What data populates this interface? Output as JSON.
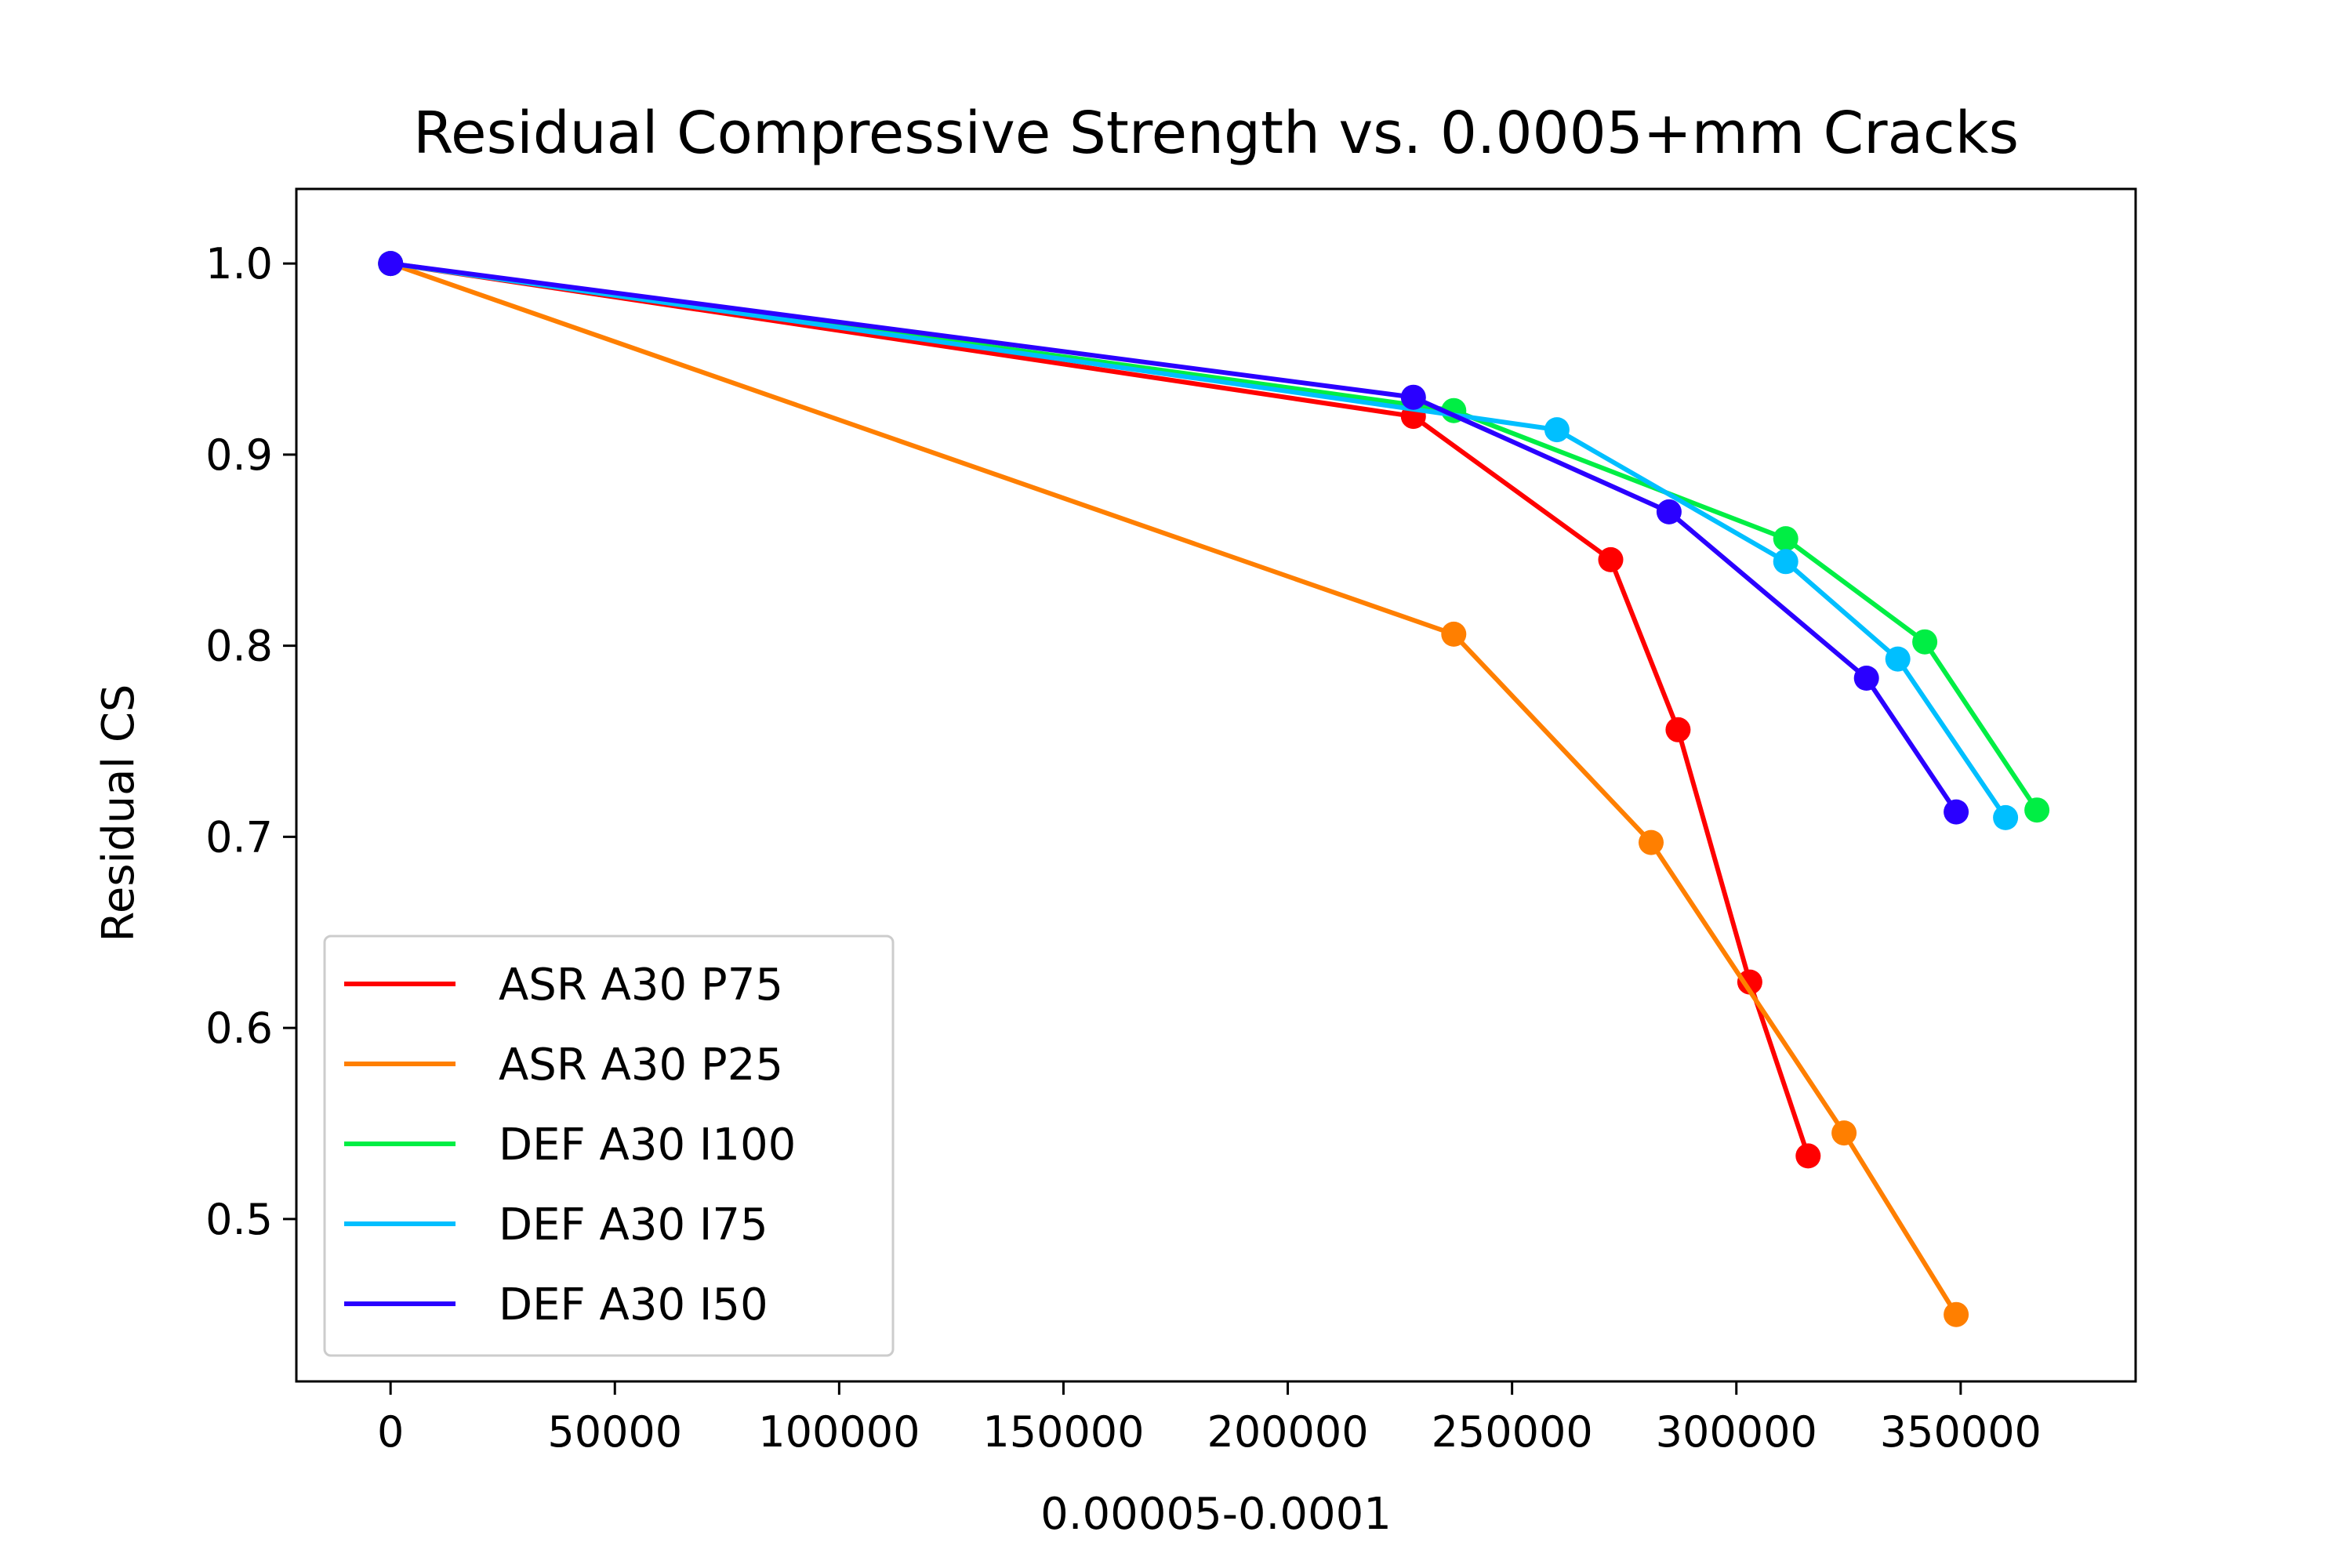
{
  "chart_data": {
    "type": "line",
    "title": "Residual Compressive Strength vs. 0.0005+mm Cracks",
    "xlabel": "0.00005-0.0001",
    "ylabel": "Residual CS",
    "xlim": [
      -21000,
      389000
    ],
    "ylim": [
      0.415,
      1.039
    ],
    "xticks": [
      0,
      50000,
      100000,
      150000,
      200000,
      250000,
      300000,
      350000
    ],
    "xtick_labels": [
      "0",
      "50000",
      "100000",
      "150000",
      "200000",
      "250000",
      "300000",
      "350000"
    ],
    "yticks": [
      0.5,
      0.6,
      0.7,
      0.8,
      0.9,
      1.0
    ],
    "ytick_labels": [
      "0.5",
      "0.6",
      "0.7",
      "0.8",
      "0.9",
      "1.0"
    ],
    "grid": false,
    "legend_position": "bottom-left",
    "series": [
      {
        "name": "ASR A30 P75",
        "color": "#ff0000",
        "x": [
          0,
          228000,
          272000,
          287000,
          303000,
          316000
        ],
        "y": [
          1.0,
          0.92,
          0.845,
          0.756,
          0.624,
          0.533
        ]
      },
      {
        "name": "ASR A30 P25",
        "color": "#ff7f00",
        "x": [
          0,
          237000,
          281000,
          324000,
          349000
        ],
        "y": [
          1.0,
          0.806,
          0.697,
          0.545,
          0.45
        ]
      },
      {
        "name": "DEF A30 I100",
        "color": "#00ee44",
        "x": [
          0,
          237000,
          311000,
          342000,
          367000
        ],
        "y": [
          1.0,
          0.923,
          0.856,
          0.802,
          0.714
        ]
      },
      {
        "name": "DEF A30 I75",
        "color": "#00bfff",
        "x": [
          0,
          260000,
          311000,
          336000,
          360000
        ],
        "y": [
          1.0,
          0.913,
          0.844,
          0.793,
          0.71
        ]
      },
      {
        "name": "DEF A30 I50",
        "color": "#2a00ff",
        "x": [
          0,
          228000,
          285000,
          329000,
          349000
        ],
        "y": [
          1.0,
          0.93,
          0.87,
          0.783,
          0.713
        ]
      }
    ]
  }
}
